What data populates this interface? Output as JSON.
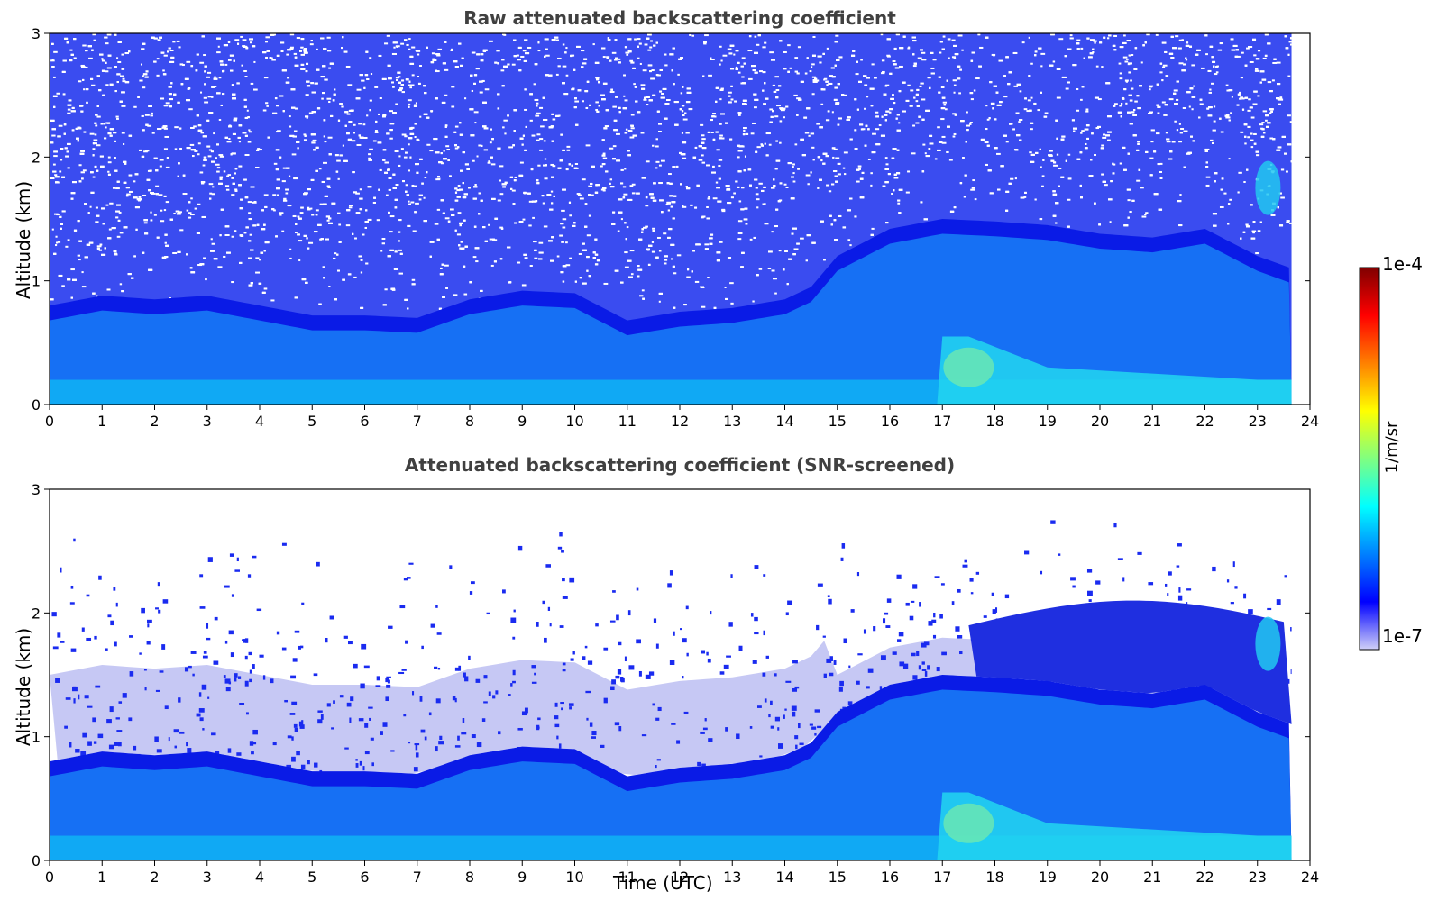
{
  "chart_data": [
    {
      "type": "heatmap",
      "title": "Raw attenuated backscattering coefficient",
      "xlabel": "",
      "ylabel": "Altitude (km)",
      "xlim": [
        0,
        24
      ],
      "ylim": [
        0,
        3
      ],
      "xticks": [
        "0",
        "1",
        "2",
        "3",
        "4",
        "5",
        "6",
        "7",
        "8",
        "9",
        "10",
        "11",
        "12",
        "13",
        "14",
        "15",
        "16",
        "17",
        "18",
        "19",
        "20",
        "21",
        "22",
        "23",
        "24"
      ],
      "yticks": [
        "0",
        "1",
        "2",
        "3"
      ],
      "data_end_hour": 23.65,
      "boundary_layer_top_km": {
        "x": [
          0,
          1,
          2,
          3,
          4,
          5,
          6,
          7,
          8,
          9,
          10,
          11,
          12,
          13,
          14,
          14.5,
          15,
          16,
          17,
          18,
          19,
          20,
          21,
          22,
          23,
          23.65
        ],
        "y": [
          0.8,
          0.88,
          0.85,
          0.88,
          0.8,
          0.72,
          0.72,
          0.7,
          0.85,
          0.92,
          0.9,
          0.68,
          0.75,
          0.78,
          0.85,
          0.95,
          1.2,
          1.42,
          1.5,
          1.48,
          1.45,
          1.38,
          1.35,
          1.42,
          1.2,
          1.1
        ]
      },
      "noise": "high above boundary layer",
      "colormap": "jet"
    },
    {
      "type": "heatmap",
      "title": "Attenuated backscattering coefficient (SNR-screened)",
      "xlabel": "Time (UTC)",
      "ylabel": "Altitude (km)",
      "xlim": [
        0,
        24
      ],
      "ylim": [
        0,
        3
      ],
      "xticks": [
        "0",
        "1",
        "2",
        "3",
        "4",
        "5",
        "6",
        "7",
        "8",
        "9",
        "10",
        "11",
        "12",
        "13",
        "14",
        "15",
        "16",
        "17",
        "18",
        "19",
        "20",
        "21",
        "22",
        "23",
        "24"
      ],
      "yticks": [
        "0",
        "1",
        "2",
        "3"
      ],
      "data_end_hour": 23.65,
      "boundary_layer_top_km": {
        "x": [
          0,
          1,
          2,
          3,
          4,
          5,
          6,
          7,
          8,
          9,
          10,
          11,
          12,
          13,
          14,
          14.5,
          15,
          16,
          17,
          18,
          19,
          20,
          21,
          22,
          23,
          23.65
        ],
        "y": [
          0.8,
          0.88,
          0.85,
          0.88,
          0.8,
          0.72,
          0.72,
          0.7,
          0.85,
          0.92,
          0.9,
          0.68,
          0.75,
          0.78,
          0.85,
          0.95,
          1.2,
          1.42,
          1.5,
          1.48,
          1.45,
          1.38,
          1.35,
          1.42,
          1.2,
          1.1
        ]
      },
      "noise": "screened (white above signal)",
      "colormap": "jet"
    }
  ],
  "colorbar": {
    "max_label": "1e-4",
    "min_label": "1e-7",
    "unit": "1/m/sr",
    "colors": [
      "#800000",
      "#ff0000",
      "#ff8000",
      "#ffff00",
      "#80ff80",
      "#00ffff",
      "#0080ff",
      "#0000ff",
      "#d0d0f8"
    ]
  }
}
